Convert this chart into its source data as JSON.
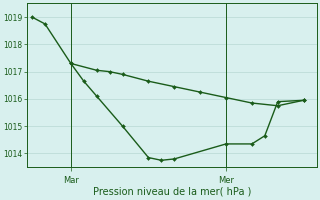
{
  "title": "Pression niveau de la mer( hPa )",
  "bg_color": "#d8f0ee",
  "line_color": "#1a5c1a",
  "grid_color": "#b8d8d4",
  "ylim": [
    1013.5,
    1019.5
  ],
  "yticks": [
    1014,
    1015,
    1016,
    1017,
    1018,
    1019
  ],
  "line1_x": [
    0,
    0.5,
    1.5,
    2.0,
    2.5,
    3.5,
    4.5,
    5.0,
    5.5,
    7.5,
    8.5,
    9.0,
    9.5,
    10.5
  ],
  "line1_y": [
    1019.0,
    1018.75,
    1017.3,
    1016.65,
    1016.1,
    1015.0,
    1013.85,
    1013.75,
    1013.8,
    1014.35,
    1014.35,
    1014.65,
    1015.9,
    1015.95
  ],
  "line2_x": [
    1.5,
    2.5,
    3.0,
    3.5,
    4.5,
    5.5,
    6.5,
    7.5,
    8.5,
    9.5,
    10.5
  ],
  "line2_y": [
    1017.3,
    1017.05,
    1017.0,
    1016.9,
    1016.65,
    1016.45,
    1016.25,
    1016.05,
    1015.85,
    1015.75,
    1015.95
  ],
  "mar_x": 1.5,
  "mer_x": 7.5,
  "xlim": [
    -0.2,
    11.0
  ]
}
